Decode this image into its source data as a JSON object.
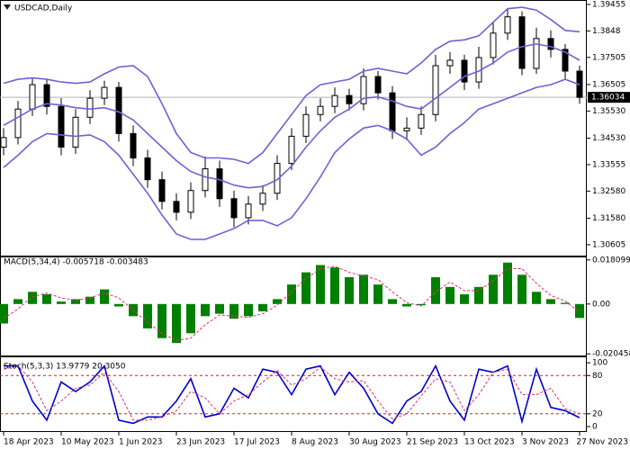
{
  "chart_data": [
    {
      "type": "candlestick",
      "title": "USDCAD,Daily",
      "x": [
        0,
        4,
        8,
        12,
        16,
        20,
        24,
        28,
        32,
        36,
        40,
        44,
        48,
        52,
        56,
        60,
        64,
        68,
        72,
        76,
        80,
        84,
        88,
        92,
        96,
        100,
        104,
        108,
        112,
        116,
        120,
        124,
        128,
        132,
        136,
        140,
        144,
        148,
        152,
        156,
        160
      ],
      "open": [
        1.342,
        1.3455,
        1.356,
        1.365,
        1.357,
        1.342,
        1.353,
        1.36,
        1.364,
        1.347,
        1.338,
        1.33,
        1.322,
        1.318,
        1.326,
        1.334,
        1.323,
        1.316,
        1.321,
        1.325,
        1.336,
        1.346,
        1.354,
        1.357,
        1.361,
        1.358,
        1.368,
        1.362,
        1.348,
        1.349,
        1.354,
        1.372,
        1.374,
        1.366,
        1.375,
        1.384,
        1.39,
        1.371,
        1.382,
        1.378,
        1.37
      ],
      "high": [
        1.349,
        1.359,
        1.3675,
        1.367,
        1.36,
        1.356,
        1.363,
        1.3665,
        1.366,
        1.35,
        1.341,
        1.333,
        1.325,
        1.329,
        1.3385,
        1.337,
        1.326,
        1.324,
        1.328,
        1.339,
        1.349,
        1.357,
        1.36,
        1.364,
        1.3635,
        1.371,
        1.37,
        1.3645,
        1.353,
        1.357,
        1.376,
        1.377,
        1.376,
        1.379,
        1.388,
        1.393,
        1.392,
        1.386,
        1.385,
        1.38,
        1.372
      ],
      "low": [
        1.339,
        1.343,
        1.3535,
        1.354,
        1.339,
        1.3395,
        1.3505,
        1.3575,
        1.344,
        1.335,
        1.327,
        1.319,
        1.315,
        1.3155,
        1.3235,
        1.32,
        1.3125,
        1.3135,
        1.3185,
        1.3225,
        1.3335,
        1.3435,
        1.3515,
        1.3545,
        1.3555,
        1.3555,
        1.3595,
        1.345,
        1.3445,
        1.3465,
        1.3515,
        1.369,
        1.363,
        1.3635,
        1.3725,
        1.3815,
        1.3685,
        1.369,
        1.375,
        1.367,
        1.358
      ],
      "close": [
        1.3455,
        1.356,
        1.365,
        1.357,
        1.342,
        1.353,
        1.36,
        1.364,
        1.347,
        1.338,
        1.33,
        1.322,
        1.318,
        1.326,
        1.334,
        1.323,
        1.316,
        1.321,
        1.325,
        1.336,
        1.346,
        1.354,
        1.357,
        1.361,
        1.358,
        1.368,
        1.362,
        1.348,
        1.349,
        1.354,
        1.372,
        1.374,
        1.366,
        1.375,
        1.384,
        1.39,
        1.371,
        1.382,
        1.378,
        1.37,
        1.36034
      ],
      "series": [
        {
          "color": "#6b63d6",
          "values": [
            1.3655,
            1.367,
            1.3675,
            1.367,
            1.366,
            1.3655,
            1.366,
            1.369,
            1.3715,
            1.372,
            1.368,
            1.358,
            1.347,
            1.34,
            1.338,
            1.338,
            1.3375,
            1.336,
            1.34,
            1.347,
            1.354,
            1.361,
            1.365,
            1.366,
            1.367,
            1.37,
            1.371,
            1.37,
            1.369,
            1.373,
            1.378,
            1.381,
            1.3815,
            1.383,
            1.388,
            1.393,
            1.3935,
            1.3925,
            1.389,
            1.385,
            1.3845
          ]
        },
        {
          "color": "#6b63d6",
          "values": [
            1.35,
            1.353,
            1.356,
            1.358,
            1.3575,
            1.3565,
            1.356,
            1.3565,
            1.355,
            1.352,
            1.347,
            1.342,
            1.337,
            1.333,
            1.331,
            1.33,
            1.328,
            1.327,
            1.3275,
            1.33,
            1.335,
            1.342,
            1.348,
            1.353,
            1.356,
            1.36,
            1.3605,
            1.359,
            1.357,
            1.356,
            1.36,
            1.364,
            1.368,
            1.37,
            1.373,
            1.377,
            1.379,
            1.38,
            1.379,
            1.377,
            1.374
          ]
        },
        {
          "color": "#6b63d6",
          "values": [
            1.3345,
            1.339,
            1.344,
            1.347,
            1.3465,
            1.346,
            1.3465,
            1.344,
            1.339,
            1.332,
            1.325,
            1.317,
            1.31,
            1.308,
            1.308,
            1.31,
            1.312,
            1.315,
            1.315,
            1.313,
            1.316,
            1.323,
            1.331,
            1.34,
            1.345,
            1.349,
            1.35,
            1.348,
            1.345,
            1.339,
            1.342,
            1.347,
            1.351,
            1.356,
            1.358,
            1.36,
            1.362,
            1.364,
            1.365,
            1.367,
            1.365
          ]
        }
      ],
      "current_price": 1.36034,
      "xlim": [
        -1,
        162
      ],
      "ylim": [
        1.3017,
        1.3962
      ],
      "yticks": [
        1.39455,
        1.3848,
        1.37505,
        1.36505,
        {
          "value": 1.3553,
          "label": "1.35530"
        },
        {
          "value": 1.3453,
          "label": "1.34530"
        },
        1.33555,
        {
          "value": 1.3258,
          "label": "1.32580"
        },
        {
          "value": 1.3158,
          "label": "1.31580"
        },
        1.30605
      ]
    },
    {
      "type": "macd",
      "title": "MACD(5,34,4) -0.005718 -0.003483",
      "x": [
        0,
        4,
        8,
        12,
        16,
        20,
        24,
        28,
        32,
        36,
        40,
        44,
        48,
        52,
        56,
        60,
        64,
        68,
        72,
        76,
        80,
        84,
        88,
        92,
        96,
        100,
        104,
        108,
        112,
        116,
        120,
        124,
        128,
        132,
        136,
        140,
        144,
        148,
        152,
        156,
        160
      ],
      "values": [
        -0.008,
        0.002,
        0.005,
        0.004,
        0.001,
        0.002,
        0.003,
        0.006,
        -0.001,
        -0.005,
        -0.01,
        -0.014,
        -0.016,
        -0.012,
        -0.005,
        -0.004,
        -0.006,
        -0.005,
        -0.003,
        0.002,
        0.008,
        0.013,
        0.016,
        0.015,
        0.011,
        0.012,
        0.008,
        0.002,
        -0.001,
        -0.0005,
        0.011,
        0.007,
        0.004,
        0.007,
        0.012,
        0.017,
        0.012,
        0.005,
        0.002,
        0.0005,
        -0.005718
      ],
      "color": "#008000",
      "series": [
        {
          "color": "#e0306a",
          "dash": true,
          "values": [
            -0.006,
            -0.002,
            0.003,
            0.0045,
            0.0025,
            0.0015,
            0.0025,
            0.0045,
            0.0025,
            -0.0025,
            -0.0075,
            -0.012,
            -0.015,
            -0.014,
            -0.0085,
            -0.0045,
            -0.005,
            -0.0055,
            -0.004,
            -0.0005,
            0.005,
            0.0105,
            0.0145,
            0.0155,
            0.013,
            0.0115,
            0.01,
            0.005,
            0.0005,
            -0.0008,
            0.005,
            0.009,
            0.0055,
            0.0055,
            0.0095,
            0.0145,
            0.0145,
            0.0085,
            0.0035,
            0.0012,
            -0.003483
          ]
        }
      ],
      "xlim": [
        -1,
        162
      ],
      "ylim": [
        -0.0215,
        0.0195
      ],
      "yticks": [
        0.018099,
        {
          "value": 0,
          "label": "0.00"
        },
        -0.020458
      ]
    },
    {
      "type": "stochastic",
      "title": "Stoch(5,3,3) 13.9779 20.3050",
      "x": [
        0,
        4,
        8,
        12,
        16,
        20,
        24,
        28,
        32,
        36,
        40,
        44,
        48,
        52,
        56,
        60,
        64,
        68,
        72,
        76,
        80,
        84,
        88,
        92,
        96,
        100,
        104,
        108,
        112,
        116,
        120,
        124,
        128,
        132,
        136,
        140,
        144,
        148,
        152,
        156,
        160
      ],
      "series": [
        {
          "color": "#0000cd",
          "values": [
            95,
            95,
            40,
            10,
            70,
            55,
            70,
            95,
            10,
            5,
            15,
            15,
            40,
            75,
            15,
            20,
            60,
            45,
            90,
            85,
            50,
            90,
            95,
            50,
            85,
            60,
            20,
            5,
            40,
            55,
            95,
            40,
            10,
            90,
            85,
            95,
            8,
            90,
            30,
            25,
            13.9779
          ]
        },
        {
          "color": "#e0306a",
          "dash": true,
          "values": [
            90,
            95,
            70,
            25,
            40,
            60,
            65,
            85,
            55,
            10,
            10,
            15,
            25,
            55,
            45,
            20,
            40,
            50,
            70,
            88,
            65,
            75,
            93,
            75,
            70,
            72,
            40,
            12,
            20,
            48,
            75,
            70,
            25,
            50,
            85,
            90,
            50,
            50,
            60,
            28,
            20.305
          ]
        }
      ],
      "levels": [
        80,
        20
      ],
      "level_color": "#d02020",
      "xlim": [
        -1,
        162
      ],
      "ylim": [
        -8.5,
        110
      ],
      "yticks": [
        100,
        80,
        20,
        0
      ],
      "xticks": [
        {
          "value": 0,
          "label": "18 Apr 2023"
        },
        {
          "value": 16,
          "label": "10 May 2023"
        },
        {
          "value": 32,
          "label": "1 Jun 2023"
        },
        {
          "value": 48,
          "label": "23 Jun 2023"
        },
        {
          "value": 64,
          "label": "17 Jul 2023"
        },
        {
          "value": 80,
          "label": "8 Aug 2023"
        },
        {
          "value": 96,
          "label": "30 Aug 2023"
        },
        {
          "value": 112,
          "label": "21 Sep 2023"
        },
        {
          "value": 128,
          "label": "13 Oct 2023"
        },
        {
          "value": 144,
          "label": "3 Nov 2023"
        },
        {
          "value": 160,
          "label": "27 Nov 2023"
        }
      ]
    }
  ]
}
